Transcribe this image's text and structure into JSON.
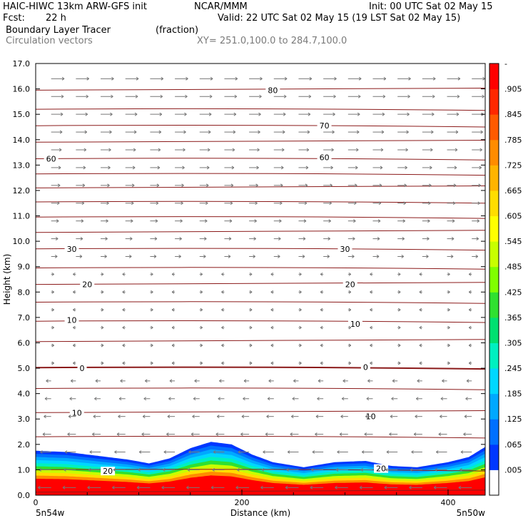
{
  "header": {
    "model_title": "HAIC-HIWC 13km ARW-GFS init",
    "org": "NCAR/MMM",
    "init": "Init: 00 UTC Sat 02 May 15",
    "fcst_label": "Fcst:",
    "fcst_value": "22 h",
    "valid": "Valid: 22 UTC Sat 02 May 15 (19 LST Sat 02 May 15)",
    "field_name": "Boundary Layer Tracer",
    "field_units": "(fraction)",
    "vector_name": "Circulation vectors",
    "xy": "XY= 251.0,100.0 to 284.7,100.0"
  },
  "colors": {
    "contour": "#8b1a1a",
    "vector": "#777777",
    "colorbar": [
      "#ffffff",
      "#0037ff",
      "#0070ff",
      "#00a8ff",
      "#00d7ff",
      "#00f0c0",
      "#00e070",
      "#30e030",
      "#80ff00",
      "#c8ff00",
      "#ffff00",
      "#ffdd00",
      "#ffb400",
      "#ff8c00",
      "#ff5a00",
      "#ff2800",
      "#ff0000"
    ]
  },
  "chart_data": {
    "type": "heatmap",
    "title": "Boundary Layer Tracer (fraction)",
    "xlabel": "Distance (km)",
    "ylabel": "Height (km)",
    "xlim": [
      0,
      436
    ],
    "ylim": [
      0,
      17
    ],
    "x_ticks": [
      "0",
      "200",
      "400"
    ],
    "x_tick_values": [
      0,
      200,
      400
    ],
    "x_end_labels": [
      "5n54w",
      "5n50w"
    ],
    "y_ticks": [
      "0.0",
      "1.0",
      "2.0",
      "3.0",
      "4.0",
      "5.0",
      "6.0",
      "7.0",
      "8.0",
      "9.0",
      "10.0",
      "11.0",
      "12.0",
      "13.0",
      "14.0",
      "15.0",
      "16.0",
      "17.0"
    ],
    "colorbar_labels": [
      "-",
      ".905",
      ".845",
      ".785",
      ".725",
      ".665",
      ".605",
      ".545",
      ".485",
      ".425",
      ".365",
      ".305",
      ".245",
      ".185",
      ".125",
      ".065",
      ".005"
    ],
    "tracer_top_km": [
      {
        "x": 0,
        "h": 1.75
      },
      {
        "x": 30,
        "h": 1.7
      },
      {
        "x": 60,
        "h": 1.55
      },
      {
        "x": 90,
        "h": 1.4
      },
      {
        "x": 110,
        "h": 1.25
      },
      {
        "x": 130,
        "h": 1.45
      },
      {
        "x": 150,
        "h": 1.85
      },
      {
        "x": 170,
        "h": 2.1
      },
      {
        "x": 190,
        "h": 2.0
      },
      {
        "x": 210,
        "h": 1.6
      },
      {
        "x": 230,
        "h": 1.3
      },
      {
        "x": 260,
        "h": 1.1
      },
      {
        "x": 290,
        "h": 1.3
      },
      {
        "x": 320,
        "h": 1.35
      },
      {
        "x": 345,
        "h": 1.15
      },
      {
        "x": 370,
        "h": 1.1
      },
      {
        "x": 400,
        "h": 1.3
      },
      {
        "x": 420,
        "h": 1.5
      },
      {
        "x": 436,
        "h": 1.9
      }
    ],
    "contour_labels": [
      {
        "text": "80",
        "x": 230,
        "h": 15.95
      },
      {
        "text": "70",
        "x": 280,
        "h": 14.55
      },
      {
        "text": "60",
        "x": 15,
        "h": 13.25
      },
      {
        "text": "60",
        "x": 280,
        "h": 13.3
      },
      {
        "text": "30",
        "x": 35,
        "h": 9.7
      },
      {
        "text": "30",
        "x": 300,
        "h": 9.7
      },
      {
        "text": "20",
        "x": 50,
        "h": 8.3
      },
      {
        "text": "20",
        "x": 305,
        "h": 8.3
      },
      {
        "text": "10",
        "x": 35,
        "h": 6.9
      },
      {
        "text": "10",
        "x": 310,
        "h": 6.75
      },
      {
        "text": "0",
        "x": 45,
        "h": 5.0
      },
      {
        "text": "0",
        "x": 320,
        "h": 5.05
      },
      {
        "text": "10",
        "x": 40,
        "h": 3.25
      },
      {
        "text": "10",
        "x": 325,
        "h": 3.1
      },
      {
        "text": "20",
        "x": 70,
        "h": 0.95
      },
      {
        "text": "20",
        "x": 335,
        "h": 1.05
      }
    ]
  }
}
